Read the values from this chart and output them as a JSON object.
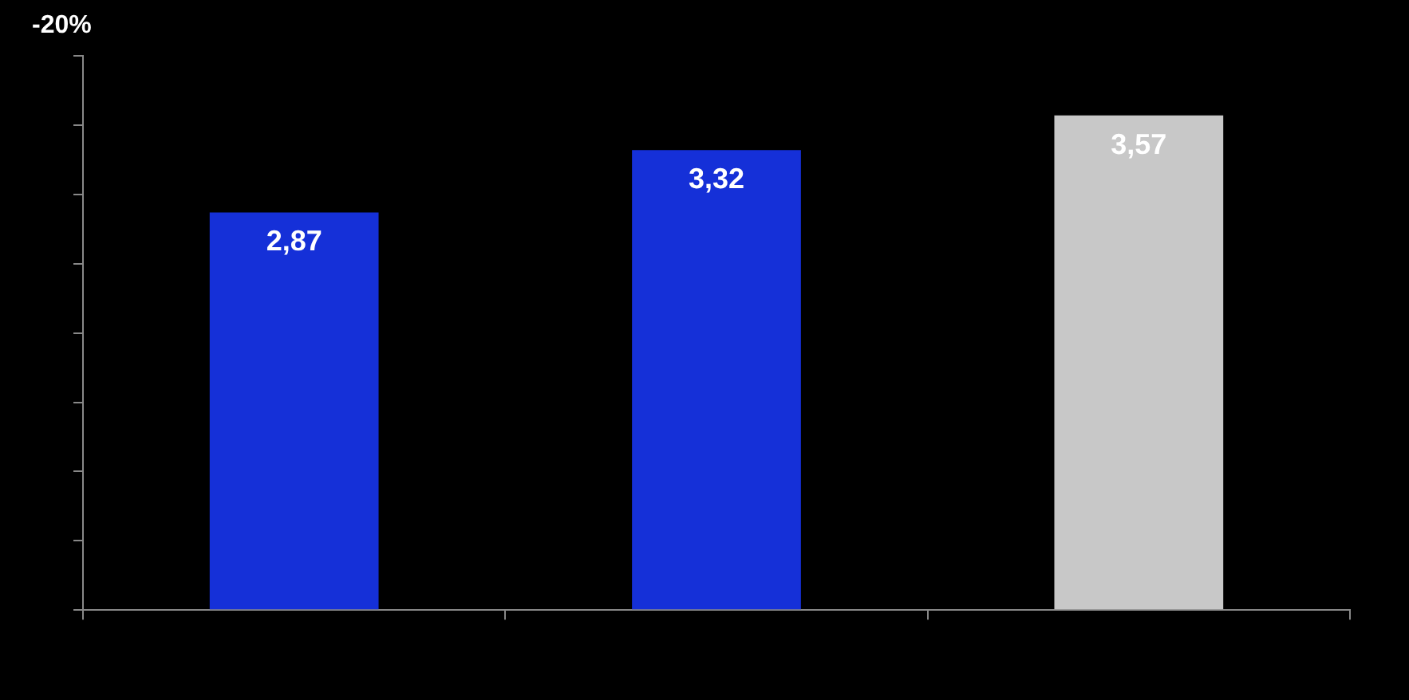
{
  "chart_data": {
    "type": "bar",
    "annotations": [
      "-20%"
    ],
    "categories": [
      null,
      null,
      null
    ],
    "values": [
      2.87,
      3.32,
      3.57
    ],
    "value_labels": [
      "2,87",
      "3,32",
      "3,57"
    ],
    "colors": [
      "#1530d8",
      "#1530d8",
      "#c8c8c8"
    ],
    "ylim": [
      0,
      4
    ],
    "yticks": [
      {
        "value": 0,
        "label": null
      },
      {
        "value": 0.5,
        "label": null
      },
      {
        "value": 1,
        "label": null
      },
      {
        "value": 1.5,
        "label": null
      },
      {
        "value": 2,
        "label": null
      },
      {
        "value": 2.5,
        "label": null
      },
      {
        "value": 3,
        "label": null
      },
      {
        "value": 3.5,
        "label": null
      },
      {
        "value": 4,
        "label": null
      }
    ],
    "grid": false,
    "legend": false
  }
}
